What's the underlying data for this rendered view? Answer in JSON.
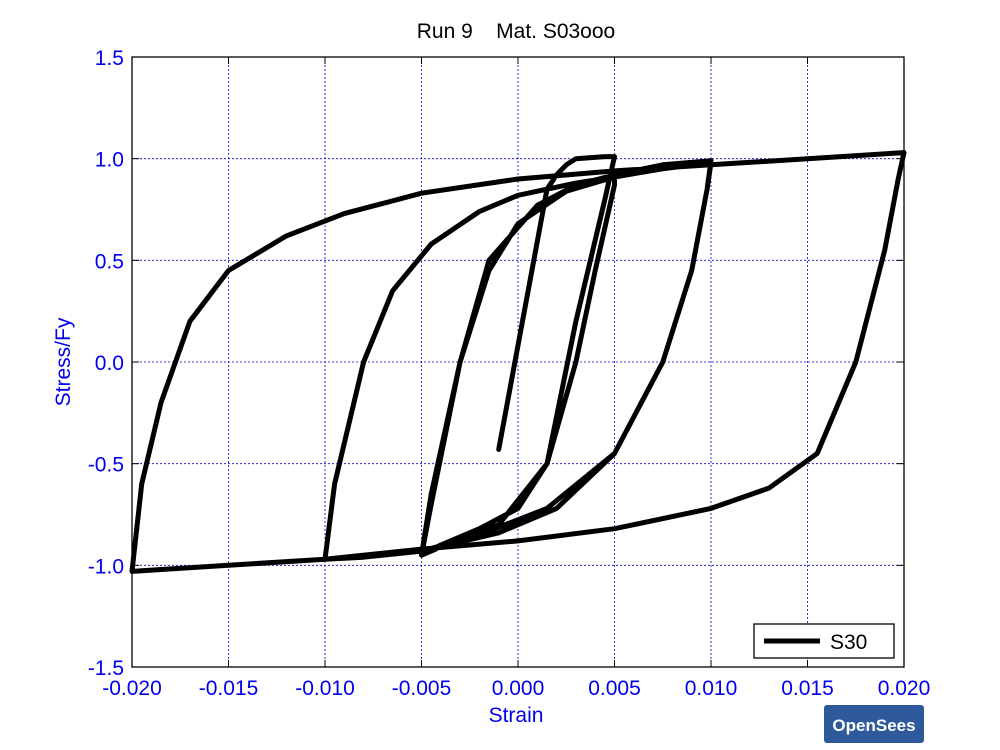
{
  "chart_data": {
    "type": "line",
    "title": "Run 9    Mat. S03ooo",
    "xlabel": "Strain",
    "ylabel": "Stress/Fy",
    "xlim": [
      -0.02,
      0.02
    ],
    "ylim": [
      -1.5,
      1.5
    ],
    "x_ticks": [
      -0.02,
      -0.015,
      -0.01,
      -0.005,
      0.0,
      0.005,
      0.01,
      0.015,
      0.02
    ],
    "x_tick_labels": [
      "-0.020",
      "-0.015",
      "-0.010",
      "-0.005",
      "0.000",
      "0.005",
      "0.010",
      "0.015",
      "0.020"
    ],
    "y_ticks": [
      -1.5,
      -1.0,
      -0.5,
      0.0,
      0.5,
      1.0,
      1.5
    ],
    "y_tick_labels": [
      "-1.5",
      "-1.0",
      "-0.5",
      "0.0",
      "0.5",
      "1.0",
      "1.5"
    ],
    "grid": true,
    "legend_position": "bottom-right",
    "series": [
      {
        "name": "S30",
        "color": "#000000",
        "points": [
          [
            -0.001,
            -0.43
          ],
          [
            0.0015,
            0.85
          ],
          [
            0.002,
            0.92
          ],
          [
            0.0025,
            0.97
          ],
          [
            0.003,
            1.0
          ],
          [
            0.0045,
            1.01
          ],
          [
            0.005,
            1.01
          ],
          [
            0.0045,
            0.8
          ],
          [
            0.003,
            0.2
          ],
          [
            0.0015,
            -0.5
          ],
          [
            0.0,
            -0.72
          ],
          [
            -0.002,
            -0.82
          ],
          [
            -0.004,
            -0.9
          ],
          [
            -0.005,
            -0.95
          ],
          [
            -0.0045,
            -0.7
          ],
          [
            -0.003,
            0.0
          ],
          [
            -0.0015,
            0.45
          ],
          [
            0.0,
            0.68
          ],
          [
            0.0025,
            0.84
          ],
          [
            0.005,
            0.91
          ],
          [
            0.005,
            0.87
          ],
          [
            0.004,
            0.45
          ],
          [
            0.003,
            0.0
          ],
          [
            0.0015,
            -0.5
          ],
          [
            -0.001,
            -0.8
          ],
          [
            -0.004,
            -0.91
          ],
          [
            -0.005,
            -0.95
          ],
          [
            -0.0045,
            -0.65
          ],
          [
            -0.003,
            0.0
          ],
          [
            -0.0015,
            0.5
          ],
          [
            0.001,
            0.77
          ],
          [
            0.003,
            0.87
          ],
          [
            0.005,
            0.92
          ],
          [
            0.0075,
            0.97
          ],
          [
            0.01,
            0.99
          ],
          [
            0.0098,
            0.85
          ],
          [
            0.009,
            0.45
          ],
          [
            0.0075,
            0.0
          ],
          [
            0.005,
            -0.45
          ],
          [
            0.002,
            -0.72
          ],
          [
            -0.001,
            -0.84
          ],
          [
            -0.005,
            -0.93
          ],
          [
            -0.008,
            -0.96
          ],
          [
            -0.01,
            -0.97
          ],
          [
            -0.0095,
            -0.6
          ],
          [
            -0.008,
            0.0
          ],
          [
            -0.0065,
            0.35
          ],
          [
            -0.0045,
            0.58
          ],
          [
            -0.002,
            0.74
          ],
          [
            0.0,
            0.82
          ],
          [
            0.003,
            0.88
          ],
          [
            0.005,
            0.91
          ],
          [
            0.0075,
            0.95
          ],
          [
            0.01,
            0.98
          ],
          [
            0.0098,
            0.85
          ],
          [
            0.009,
            0.45
          ],
          [
            0.0075,
            0.0
          ],
          [
            0.005,
            -0.45
          ],
          [
            0.0015,
            -0.72
          ],
          [
            -0.002,
            -0.85
          ],
          [
            -0.005,
            -0.93
          ],
          [
            -0.01,
            -0.97
          ],
          [
            -0.015,
            -1.0
          ],
          [
            -0.02,
            -1.03
          ],
          [
            -0.0195,
            -0.6
          ],
          [
            -0.0185,
            -0.2
          ],
          [
            -0.017,
            0.2
          ],
          [
            -0.015,
            0.45
          ],
          [
            -0.012,
            0.62
          ],
          [
            -0.009,
            0.73
          ],
          [
            -0.005,
            0.83
          ],
          [
            0.0,
            0.9
          ],
          [
            0.005,
            0.94
          ],
          [
            0.01,
            0.97
          ],
          [
            0.015,
            1.0
          ],
          [
            0.02,
            1.03
          ],
          [
            0.0197,
            0.9
          ],
          [
            0.019,
            0.55
          ],
          [
            0.0175,
            0.0
          ],
          [
            0.0155,
            -0.45
          ],
          [
            0.013,
            -0.62
          ],
          [
            0.01,
            -0.72
          ],
          [
            0.005,
            -0.82
          ],
          [
            0.0,
            -0.88
          ],
          [
            -0.005,
            -0.92
          ],
          [
            -0.01,
            -0.97
          ],
          [
            -0.015,
            -1.0
          ],
          [
            -0.02,
            -1.03
          ]
        ]
      }
    ]
  },
  "watermark": {
    "text": "OpenSees",
    "color": "#2e5a9c"
  }
}
